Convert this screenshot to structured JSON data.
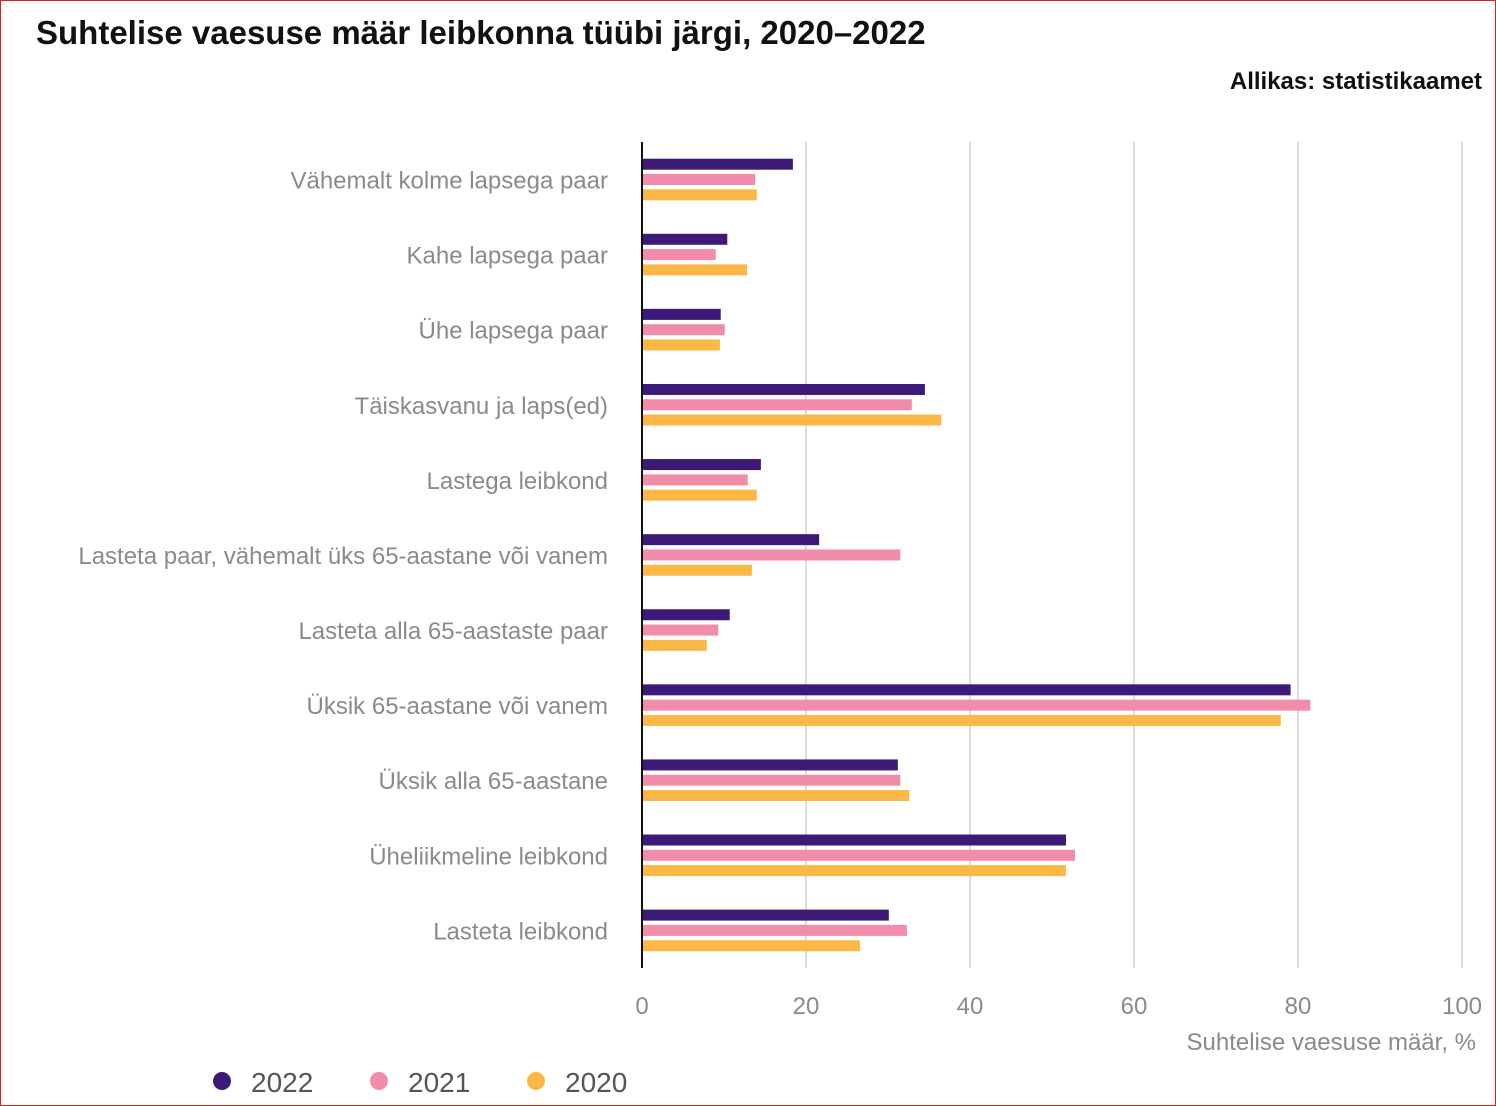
{
  "title": "Suhtelise vaesuse määr leibkonna tüübi järgi, 2020–2022",
  "source": "Allikas: statistikaamet",
  "chart_data": {
    "type": "bar",
    "orientation": "horizontal",
    "title": "Suhtelise vaesuse määr leibkonna tüübi järgi, 2020–2022",
    "xlabel": "Suhtelise vaesuse määr, %",
    "ylabel": "",
    "xlim": [
      0,
      100
    ],
    "ticks": [
      "0",
      "20",
      "40",
      "60",
      "80",
      "100"
    ],
    "tick_values": [
      0,
      20,
      40,
      60,
      80,
      100
    ],
    "grid": true,
    "legend_position": "bottom-left",
    "categories": [
      "Vähemalt kolme lapsega paar",
      "Kahe lapsega paar",
      "Ühe lapsega paar",
      "Täiskasvanu ja laps(ed)",
      "Lastega leibkond",
      "Lasteta paar, vähemalt üks 65-aastane või vanem",
      "Lasteta alla 65-aastaste paar",
      "Üksik 65-aastane või vanem",
      "Üksik alla 65-aastane",
      "Üheliikmeline leibkond",
      "Lasteta leibkond"
    ],
    "series": [
      {
        "name": "2022",
        "color": "#3d1a78",
        "values": [
          18.4,
          10.4,
          9.6,
          34.5,
          14.5,
          21.6,
          10.7,
          79.1,
          31.2,
          51.7,
          30.1
        ]
      },
      {
        "name": "2021",
        "color": "#f28cab",
        "values": [
          13.8,
          9.0,
          10.1,
          32.9,
          12.9,
          31.5,
          9.3,
          81.5,
          31.5,
          52.8,
          32.3
        ]
      },
      {
        "name": "2020",
        "color": "#fbb847",
        "values": [
          14.0,
          12.8,
          9.5,
          36.5,
          14.0,
          13.4,
          7.9,
          77.9,
          32.6,
          51.7,
          26.6
        ]
      }
    ]
  }
}
